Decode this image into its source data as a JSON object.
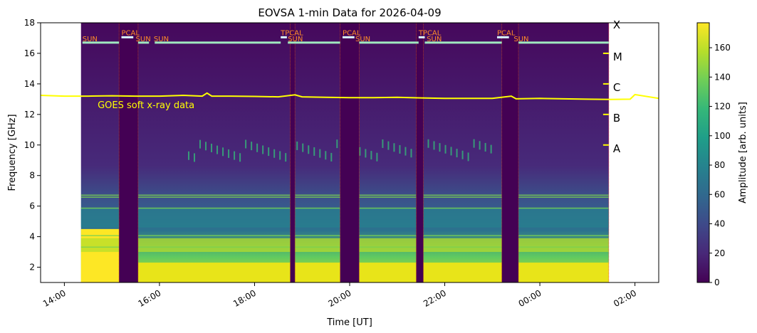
{
  "chart_data": {
    "type": "heatmap",
    "title": "EOVSA 1-min Data for 2026-04-09",
    "xlabel": "Time [UT]",
    "ylabel": "Frequency [GHz]",
    "x_ticks": [
      "14:00",
      "16:00",
      "18:00",
      "20:00",
      "22:00",
      "00:00",
      "02:00"
    ],
    "x_tick_hours": [
      14,
      16,
      18,
      20,
      22,
      24,
      26
    ],
    "xlim_hours": [
      13.5,
      26.5
    ],
    "y_ticks": [
      2,
      4,
      6,
      8,
      10,
      12,
      14,
      16,
      18
    ],
    "ylim": [
      1,
      18
    ],
    "colorbar": {
      "label": "Amplitude [arb. units]",
      "ticks": [
        0,
        20,
        40,
        60,
        80,
        100,
        120,
        140,
        160
      ],
      "range": [
        0,
        177
      ],
      "colormap": [
        "#440154",
        "#482878",
        "#3e4989",
        "#31688e",
        "#26828e",
        "#1f9e89",
        "#35b779",
        "#6ece58",
        "#b5de2b",
        "#fde725"
      ]
    },
    "data_extent_hours": [
      14.35,
      25.45
    ],
    "calibration_gaps": [
      {
        "start": 15.15,
        "end": 15.55
      },
      {
        "start": 18.75,
        "end": 18.85
      },
      {
        "start": 19.8,
        "end": 20.2
      },
      {
        "start": 21.4,
        "end": 21.55
      },
      {
        "start": 23.2,
        "end": 23.55
      }
    ],
    "scan_labels": [
      {
        "text": "SUN",
        "time": 14.38,
        "row": "lower"
      },
      {
        "text": "PCAL",
        "time": 15.2,
        "row": "upper"
      },
      {
        "text": "SUN",
        "time": 15.5,
        "row": "lower"
      },
      {
        "text": "SUN",
        "time": 15.88,
        "row": "lower"
      },
      {
        "text": "TPCAL",
        "time": 18.55,
        "row": "upper"
      },
      {
        "text": "SUN",
        "time": 18.7,
        "row": "lower"
      },
      {
        "text": "PCAL",
        "time": 19.85,
        "row": "upper"
      },
      {
        "text": "SUN",
        "time": 20.12,
        "row": "lower"
      },
      {
        "text": "TPCAL",
        "time": 21.45,
        "row": "upper"
      },
      {
        "text": "SUN",
        "time": 21.62,
        "row": "lower"
      },
      {
        "text": "PCAL",
        "time": 23.1,
        "row": "upper"
      },
      {
        "text": "SUN",
        "time": 23.45,
        "row": "lower"
      }
    ],
    "scan_bars": [
      {
        "start": 14.38,
        "end": 15.15,
        "level": 16.7
      },
      {
        "start": 15.55,
        "end": 15.78,
        "level": 16.7
      },
      {
        "start": 15.9,
        "end": 18.55,
        "level": 16.7
      },
      {
        "start": 18.7,
        "end": 19.8,
        "level": 16.7
      },
      {
        "start": 20.2,
        "end": 21.45,
        "level": 16.7
      },
      {
        "start": 21.58,
        "end": 23.2,
        "level": 16.7
      },
      {
        "start": 23.55,
        "end": 25.45,
        "level": 16.7
      },
      {
        "start": 15.2,
        "end": 15.45,
        "level": 17.05
      },
      {
        "start": 18.55,
        "end": 18.68,
        "level": 17.05
      },
      {
        "start": 19.85,
        "end": 20.1,
        "level": 17.05
      },
      {
        "start": 21.45,
        "end": 21.58,
        "level": 17.05
      },
      {
        "start": 23.1,
        "end": 23.35,
        "level": 17.05
      }
    ],
    "goes": {
      "label": "GOES soft x-ray data",
      "color": "#ffff00",
      "times": [
        13.5,
        14.0,
        14.5,
        15.0,
        15.5,
        16.0,
        16.5,
        16.9,
        17.0,
        17.1,
        17.5,
        18.0,
        18.5,
        18.85,
        19.0,
        19.5,
        20.0,
        20.5,
        21.0,
        21.5,
        22.0,
        22.5,
        23.0,
        23.4,
        23.5,
        24.0,
        24.5,
        25.0,
        25.5,
        25.9,
        26.0,
        26.5
      ],
      "levels": [
        13.25,
        13.2,
        13.2,
        13.22,
        13.2,
        13.2,
        13.25,
        13.2,
        13.4,
        13.2,
        13.2,
        13.18,
        13.15,
        13.28,
        13.15,
        13.12,
        13.1,
        13.1,
        13.12,
        13.08,
        13.05,
        13.05,
        13.05,
        13.2,
        13.02,
        13.05,
        13.02,
        13.0,
        12.98,
        13.0,
        13.3,
        13.05
      ],
      "class_ticks": [
        {
          "label": "X",
          "level": 18.0
        },
        {
          "label": "M",
          "level": 16.0
        },
        {
          "label": "C",
          "level": 14.0
        },
        {
          "label": "B",
          "level": 12.0
        },
        {
          "label": "A",
          "level": 10.0
        }
      ],
      "class_axis_time": 25.45
    }
  }
}
